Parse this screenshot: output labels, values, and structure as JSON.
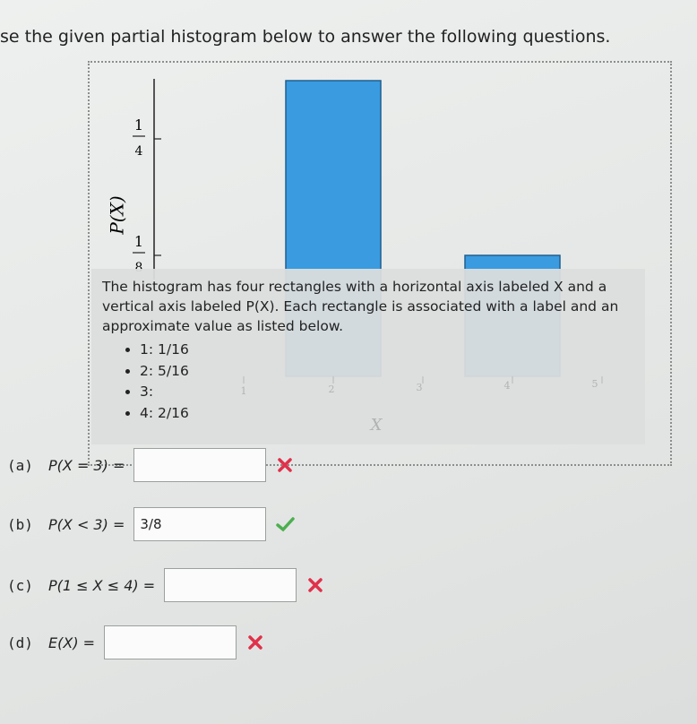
{
  "instruction": "se the given partial histogram below to answer the following questions.",
  "figure": {
    "y_label": "P(X)",
    "yticks": [
      {
        "value": 0.25,
        "numerator": "1",
        "denominator": "4"
      },
      {
        "value": 0.125,
        "numerator": "1",
        "denominator": "8"
      }
    ],
    "bars": [
      {
        "x": 2,
        "value": 0.3125
      },
      {
        "x": 4,
        "value": 0.125
      }
    ],
    "xticks": [
      1,
      2,
      3,
      4,
      5
    ],
    "x_label": "X"
  },
  "description": {
    "text": "The histogram has four rectangles with a horizontal axis labeled X and a vertical axis labeled P(X). Each rectangle is associated with a label and an approximate value as listed below.",
    "items": [
      "1: 1/16",
      "2: 5/16",
      "3:",
      "4: 2/16"
    ]
  },
  "questions": [
    {
      "label": "(a)",
      "expression": "P(X = 3) =",
      "status": "incorrect"
    },
    {
      "label": "(b)",
      "expression": "P(X < 3) =",
      "answer": "3/8",
      "status": "correct"
    },
    {
      "label": "(c)",
      "expression": "P(1 ≤ X ≤ 4) =",
      "status": "incorrect"
    },
    {
      "label": "(d)",
      "expression": "E(X) =",
      "status": "incorrect"
    }
  ]
}
